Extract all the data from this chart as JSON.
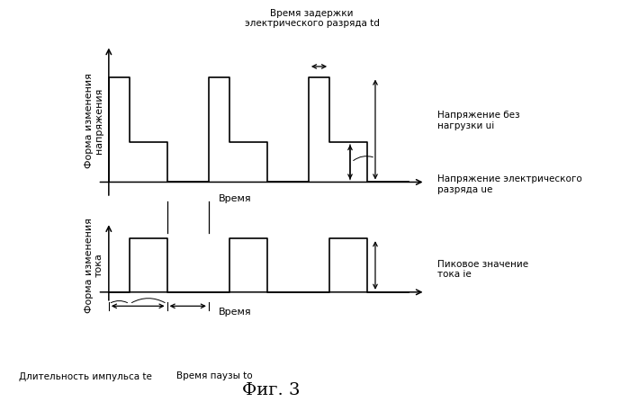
{
  "fig_title": "Фиг. 3",
  "top_ylabel": "Форма изменения\nнапряжения",
  "bottom_ylabel": "Форма изменения\nтока",
  "top_xlabel": "Время",
  "bottom_xlabel": "Время",
  "bg_color": "#ffffff",
  "line_color": "#000000",
  "td_label": "Время задержки\nэлектрического разряда td",
  "ui_label": "Напряжение без\nнагрузки ui",
  "ue_label": "Напряжение электрического\nразряда ue",
  "ie_label": "Пиковое значение\nтока ie",
  "te_label": "Длительность импульса te",
  "to_label": "Время паузы to",
  "ui": 1.0,
  "ue": 0.38,
  "ie": 1.0,
  "td": 0.15,
  "te": 0.42,
  "to": 0.3,
  "fontsize_main": 8,
  "fontsize_annot": 7.5
}
